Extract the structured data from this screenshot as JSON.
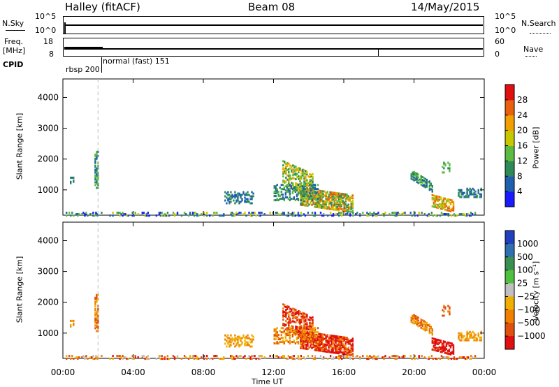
{
  "header": {
    "station": "Halley (fitACF)",
    "beam": "Beam 08",
    "date": "14/May/2015"
  },
  "strip": {
    "nsky_label": "N.Sky",
    "nsky_ticks": [
      "10^5",
      "10^0"
    ],
    "nsearch_label": "N.Search",
    "nsearch_ticks": [
      "10^5",
      "10^0"
    ],
    "freq_label": "Freq.",
    "freq_unit": "[MHz]",
    "freq_ticks": [
      "18",
      "8"
    ],
    "nave_label": "Nave",
    "nave_ticks": [
      "60",
      "0"
    ],
    "cpid_label": "CPID",
    "cpid_entries": [
      "rbsp 200",
      "normal (fast) 151"
    ]
  },
  "chart_data": [
    {
      "type": "heatmap",
      "name": "power",
      "ylabel": "Slant Range [km]",
      "ylim": [
        180,
        4600
      ],
      "xlim": [
        0,
        24
      ],
      "yticks": [
        1000,
        2000,
        3000,
        4000
      ],
      "colorbar": {
        "label": "Power [dB]",
        "ticks": [
          4,
          8,
          12,
          16,
          20,
          24,
          28
        ],
        "range": [
          0,
          32
        ]
      },
      "marker_time": 2.0
    },
    {
      "type": "heatmap",
      "name": "velocity",
      "ylabel": "Slant Range [km]",
      "ylim": [
        180,
        4600
      ],
      "xlim": [
        0,
        24
      ],
      "yticks": [
        1000,
        2000,
        3000,
        4000
      ],
      "colorbar": {
        "label": "Velocity [m s⁻¹]",
        "ticks": [
          "1000",
          "500",
          "100",
          "25",
          "−25",
          "−100",
          "−500",
          "−1000"
        ]
      },
      "marker_time": 2.0
    }
  ],
  "xaxis": {
    "label": "Time UT",
    "ticks": [
      "00:00",
      "04:00",
      "08:00",
      "12:00",
      "16:00",
      "20:00",
      "00:00"
    ]
  },
  "colors": {
    "power_scale": [
      "#1a1aff",
      "#1f5fb0",
      "#2e8b57",
      "#5dbb3f",
      "#c8c800",
      "#f0a000",
      "#e86010",
      "#e01010"
    ],
    "velocity_scale": [
      "#2040c0",
      "#3070b0",
      "#3a9050",
      "#50c040",
      "#c0c0c0",
      "#f0b000",
      "#f08000",
      "#e05010",
      "#e01010"
    ]
  }
}
